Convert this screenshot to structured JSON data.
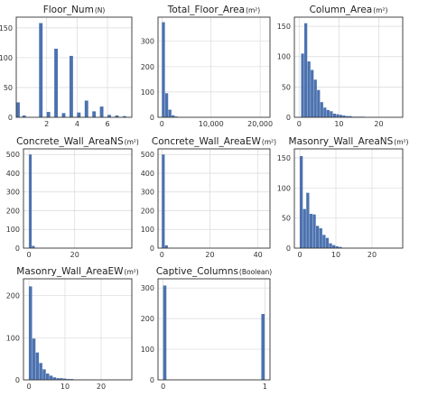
{
  "chart_data": [
    {
      "type": "bar",
      "title": "Floor_Num",
      "title_unit": "(N)",
      "xlim": [
        0,
        7.6
      ],
      "ylim": [
        0,
        168
      ],
      "xticks": [
        2,
        4,
        6
      ],
      "xtick_labels": [
        "2",
        "4",
        "6"
      ],
      "yticks": [
        0,
        50,
        100,
        150
      ],
      "ytick_labels": [
        "0",
        "50",
        "100",
        "150"
      ],
      "grid": true,
      "bar_width": 0.25,
      "x": [
        0,
        0.4,
        1.5,
        2.0,
        2.5,
        3.0,
        3.5,
        4.0,
        4.5,
        5.0,
        5.5,
        6.0,
        6.5,
        7.0
      ],
      "values": [
        25,
        3,
        158,
        9,
        115,
        7,
        103,
        8,
        28,
        10,
        18,
        4,
        3,
        2
      ],
      "color": "#4c72b0"
    },
    {
      "type": "bar",
      "title": "Total_Floor_Area",
      "title_unit": "(m²)",
      "xlim": [
        -800,
        22000
      ],
      "ylim": [
        0,
        395
      ],
      "xticks": [
        0,
        10000,
        20000
      ],
      "xtick_labels": [
        "0",
        "10,000",
        "20,000"
      ],
      "yticks": [
        0,
        100,
        200,
        300
      ],
      "ytick_labels": [
        "0",
        "100",
        "200",
        "300"
      ],
      "grid": true,
      "bar_width": 660,
      "x": [
        0,
        660,
        1320,
        1980,
        2640
      ],
      "values": [
        375,
        95,
        30,
        8,
        3
      ],
      "color": "#4c72b0"
    },
    {
      "type": "bar",
      "title": "Column_Area",
      "title_unit": "(m²)",
      "xlim": [
        -1.2,
        26
      ],
      "ylim": [
        0,
        165
      ],
      "xticks": [
        0,
        10,
        20
      ],
      "xtick_labels": [
        "0",
        "10",
        "20"
      ],
      "yticks": [
        0,
        50,
        100,
        150
      ],
      "ytick_labels": [
        "0",
        "50",
        "100",
        "150"
      ],
      "grid": true,
      "bar_width": 0.8,
      "x": [
        0.5,
        1.3,
        2.1,
        2.9,
        3.7,
        4.5,
        5.3,
        6.1,
        6.9,
        7.7,
        8.5,
        9.3,
        10.1,
        10.9,
        11.7,
        12.5,
        13.3,
        14.1,
        14.9,
        15.7
      ],
      "values": [
        105,
        155,
        92,
        78,
        62,
        45,
        25,
        16,
        12,
        10,
        6,
        5,
        4,
        3,
        2,
        2,
        1,
        1,
        1,
        1
      ],
      "color": "#4c72b0"
    },
    {
      "type": "bar",
      "title": "Concrete_Wall_AreaNS",
      "title_unit": "(m²)",
      "xlim": [
        -2.4,
        45
      ],
      "ylim": [
        0,
        530
      ],
      "xticks": [
        0,
        20
      ],
      "xtick_labels": [
        "0",
        "20"
      ],
      "yticks": [
        0,
        100,
        200,
        300,
        400,
        500
      ],
      "ytick_labels": [
        "0",
        "100",
        "200",
        "300",
        "400",
        "500"
      ],
      "grid": true,
      "bar_width": 1.3,
      "x": [
        0,
        1.3,
        2.6
      ],
      "values": [
        500,
        12,
        2
      ],
      "color": "#4c72b0"
    },
    {
      "type": "bar",
      "title": "Concrete_Wall_AreaEW",
      "title_unit": "(m²)",
      "xlim": [
        -1.6,
        45
      ],
      "ylim": [
        0,
        530
      ],
      "xticks": [
        0,
        20,
        40
      ],
      "xtick_labels": [
        "0",
        "20",
        "40"
      ],
      "yticks": [
        0,
        100,
        200,
        300,
        400,
        500
      ],
      "ytick_labels": [
        "0",
        "100",
        "200",
        "300",
        "400",
        "500"
      ],
      "grid": true,
      "bar_width": 1.3,
      "x": [
        0,
        1.3,
        2.6
      ],
      "values": [
        500,
        15,
        2
      ],
      "color": "#4c72b0"
    },
    {
      "type": "bar",
      "title": "Masonry_Wall_AreaNS",
      "title_unit": "(m²)",
      "xlim": [
        -1.5,
        28.5
      ],
      "ylim": [
        0,
        165
      ],
      "xticks": [
        0,
        10,
        20
      ],
      "xtick_labels": [
        "0",
        "10",
        "20"
      ],
      "yticks": [
        0,
        50,
        100,
        150
      ],
      "ytick_labels": [
        "0",
        "50",
        "100",
        "150"
      ],
      "grid": true,
      "bar_width": 0.9,
      "x": [
        0,
        0.9,
        1.8,
        2.7,
        3.6,
        4.5,
        5.4,
        6.3,
        7.2,
        8.1,
        9.0,
        9.9,
        10.8
      ],
      "values": [
        153,
        65,
        92,
        57,
        56,
        37,
        33,
        22,
        17,
        8,
        5,
        3,
        2
      ],
      "color": "#4c72b0"
    },
    {
      "type": "bar",
      "title": "Masonry_Wall_AreaEW",
      "title_unit": "(m²)",
      "xlim": [
        -1.5,
        28.5
      ],
      "ylim": [
        0,
        240
      ],
      "xticks": [
        0,
        10,
        20
      ],
      "xtick_labels": [
        "0",
        "10",
        "20"
      ],
      "yticks": [
        0,
        100,
        200
      ],
      "ytick_labels": [
        "0",
        "100",
        "200"
      ],
      "grid": true,
      "bar_width": 0.95,
      "x": [
        0,
        0.95,
        1.9,
        2.85,
        3.8,
        4.75,
        5.7,
        6.65,
        7.6,
        8.55,
        9.5,
        10.45,
        11.4,
        12.35,
        13.3,
        14.25
      ],
      "values": [
        222,
        98,
        65,
        40,
        25,
        15,
        10,
        6,
        4,
        4,
        3,
        2,
        2,
        1,
        1,
        1
      ],
      "color": "#4c72b0"
    },
    {
      "type": "bar",
      "title": "Captive_Columns",
      "title_unit": "(Boolean)",
      "xlim": [
        -0.05,
        1.05
      ],
      "ylim": [
        0,
        330
      ],
      "xticks": [
        0,
        1
      ],
      "xtick_labels": [
        "0",
        "1"
      ],
      "yticks": [
        0,
        100,
        200,
        300
      ],
      "ytick_labels": [
        "0",
        "100",
        "200",
        "300"
      ],
      "grid": true,
      "bar_width": 0.035,
      "x": [
        0,
        0.965
      ],
      "values": [
        308,
        215
      ],
      "color": "#4c72b0"
    }
  ]
}
